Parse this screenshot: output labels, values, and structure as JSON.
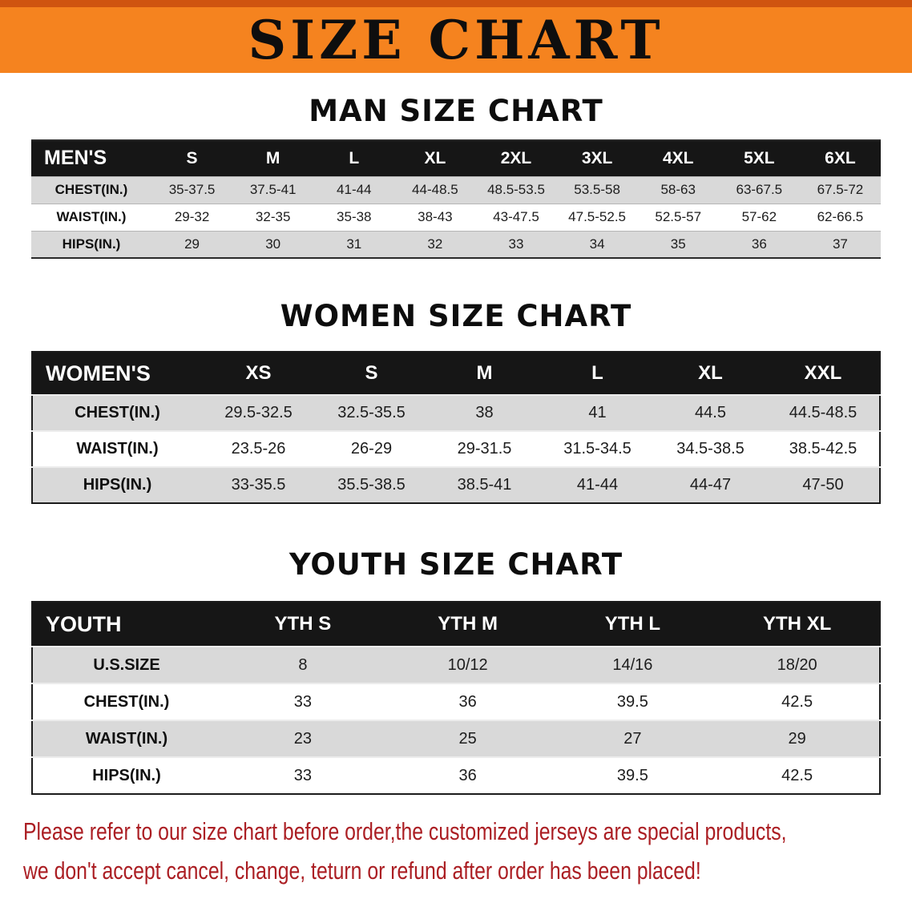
{
  "banner": {
    "title": "SIZE CHART"
  },
  "sections": [
    {
      "id": "men",
      "title": "MAN SIZE CHART",
      "table": {
        "header": [
          "MEN'S",
          "S",
          "M",
          "L",
          "XL",
          "2XL",
          "3XL",
          "4XL",
          "5XL",
          "6XL"
        ],
        "rows": [
          [
            "CHEST(IN.)",
            "35-37.5",
            "37.5-41",
            "41-44",
            "44-48.5",
            "48.5-53.5",
            "53.5-58",
            "58-63",
            "63-67.5",
            "67.5-72"
          ],
          [
            "WAIST(IN.)",
            "29-32",
            "32-35",
            "35-38",
            "38-43",
            "43-47.5",
            "47.5-52.5",
            "52.5-57",
            "57-62",
            "62-66.5"
          ],
          [
            "HIPS(IN.)",
            "29",
            "30",
            "31",
            "32",
            "33",
            "34",
            "35",
            "36",
            "37"
          ]
        ]
      }
    },
    {
      "id": "women",
      "title": "WOMEN SIZE CHART",
      "table": {
        "header": [
          "WOMEN'S",
          "XS",
          "S",
          "M",
          "L",
          "XL",
          "XXL"
        ],
        "rows": [
          [
            "CHEST(IN.)",
            "29.5-32.5",
            "32.5-35.5",
            "38",
            "41",
            "44.5",
            "44.5-48.5"
          ],
          [
            "WAIST(IN.)",
            "23.5-26",
            "26-29",
            "29-31.5",
            "31.5-34.5",
            "34.5-38.5",
            "38.5-42.5"
          ],
          [
            "HIPS(IN.)",
            "33-35.5",
            "35.5-38.5",
            "38.5-41",
            "41-44",
            "44-47",
            "47-50"
          ]
        ]
      }
    },
    {
      "id": "youth",
      "title": "YOUTH SIZE CHART",
      "table": {
        "header": [
          "YOUTH",
          "YTH S",
          "YTH M",
          "YTH L",
          "YTH XL"
        ],
        "rows": [
          [
            "U.S.SIZE",
            "8",
            "10/12",
            "14/16",
            "18/20"
          ],
          [
            "CHEST(IN.)",
            "33",
            "36",
            "39.5",
            "42.5"
          ],
          [
            "WAIST(IN.)",
            "23",
            "25",
            "27",
            "29"
          ],
          [
            "HIPS(IN.)",
            "33",
            "36",
            "39.5",
            "42.5"
          ]
        ]
      }
    }
  ],
  "footer": {
    "line1": "Please refer to our size chart before order,the customized jerseys are special products,",
    "line2": "we don't accept cancel, change, teturn or refund after order has been placed!"
  },
  "colors": {
    "banner_orange": "#f5831f",
    "header_black": "#161616",
    "row_gray": "#d9d9d9",
    "footer_red": "#ab1e23"
  }
}
